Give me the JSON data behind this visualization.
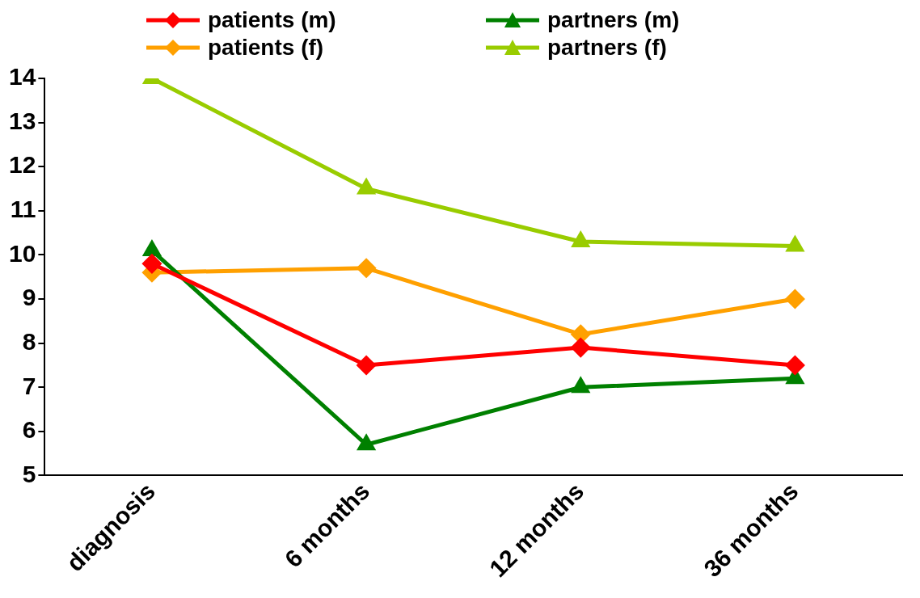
{
  "chart_data": {
    "type": "line",
    "categories": [
      "diagnosis",
      "6 months",
      "12 months",
      "36 months"
    ],
    "series": [
      {
        "name": "patients (m)",
        "color": "#ff0000",
        "marker": "diamond",
        "values": [
          9.8,
          7.5,
          7.9,
          7.5
        ]
      },
      {
        "name": "partners (m)",
        "color": "#008000",
        "marker": "triangle",
        "values": [
          10.1,
          5.7,
          7.0,
          7.2
        ]
      },
      {
        "name": "patients (f)",
        "color": "#ffa000",
        "marker": "diamond",
        "values": [
          9.6,
          9.7,
          8.2,
          9.0
        ]
      },
      {
        "name": "partners (f)",
        "color": "#99cc00",
        "marker": "triangle",
        "values": [
          14.0,
          11.5,
          10.3,
          10.2
        ]
      }
    ],
    "ylim": [
      5,
      14
    ],
    "yticks": [
      5,
      6,
      7,
      8,
      9,
      10,
      11,
      12,
      13,
      14
    ],
    "grid": false,
    "legend": "top",
    "line_style": "solid"
  }
}
